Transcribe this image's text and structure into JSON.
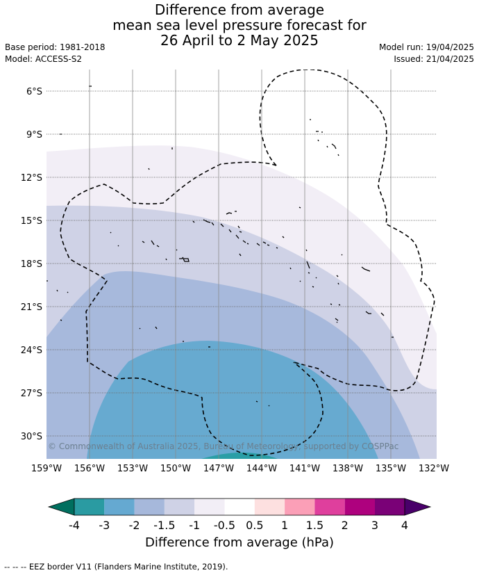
{
  "header": {
    "title_line1": "Difference from average",
    "title_line2": "mean sea level pressure forecast for",
    "title_line3": "26 April to 2 May 2025",
    "base_period": "Base period: 1981-2018",
    "model": "Model: ACCESS-S2",
    "model_run": "Model run: 19/04/2025",
    "issued": "Issued: 21/04/2025"
  },
  "map": {
    "lon_labels": [
      "159°W",
      "156°W",
      "153°W",
      "150°W",
      "147°W",
      "144°W",
      "141°W",
      "138°W",
      "135°W",
      "132°W"
    ],
    "lat_labels": [
      "6°S",
      "9°S",
      "12°S",
      "15°S",
      "18°S",
      "21°S",
      "24°S",
      "27°S",
      "30°S"
    ],
    "copyright": "© Commonwealth of Australia 2025, Bureau of Meteorology, supported by COSPPac",
    "fill_colors": {
      "band_m0_5": "#f2eef6",
      "band_m1": "#cfd2e6",
      "band_m1_5": "#a7b9dc",
      "band_m2": "#67aad0",
      "band_m3": "#2a9ea6",
      "band_m4": "#00806a"
    }
  },
  "colorbar": {
    "labels": [
      "-4",
      "-3",
      "-2",
      "-1.5",
      "-1",
      "-0.5",
      "0.5",
      "1",
      "1.5",
      "2",
      "3",
      "4"
    ],
    "colors": [
      "#006f5f",
      "#2a9ba2",
      "#65a9d1",
      "#a6b8db",
      "#cfd2e6",
      "#f2eef6",
      "#ffffff",
      "#fde0e0",
      "#fb9fb7",
      "#df3f9d",
      "#ae017e",
      "#7a0177",
      "#49006a"
    ],
    "title": "Difference from average (hPa)"
  },
  "footer": {
    "legend_text": "-- -- -- EEZ border V11 (Flanders Marine Institute, 2019)."
  }
}
